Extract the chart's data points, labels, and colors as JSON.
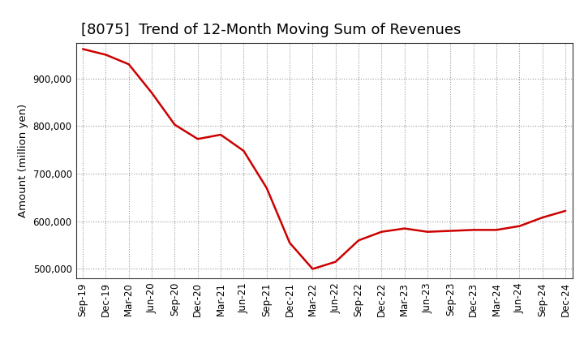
{
  "title": "[8075]  Trend of 12-Month Moving Sum of Revenues",
  "ylabel": "Amount (million yen)",
  "line_color": "#cc0000",
  "background_color": "#ffffff",
  "grid_color": "#999999",
  "x_labels": [
    "Sep-19",
    "Dec-19",
    "Mar-20",
    "Jun-20",
    "Sep-20",
    "Dec-20",
    "Mar-21",
    "Jun-21",
    "Sep-21",
    "Dec-21",
    "Mar-22",
    "Jun-22",
    "Sep-22",
    "Dec-22",
    "Mar-23",
    "Jun-23",
    "Sep-23",
    "Dec-23",
    "Mar-24",
    "Jun-24",
    "Sep-24",
    "Dec-24"
  ],
  "y_values": [
    962000,
    950000,
    930000,
    870000,
    803000,
    773000,
    782000,
    748000,
    670000,
    555000,
    500000,
    515000,
    560000,
    578000,
    585000,
    578000,
    580000,
    582000,
    582000,
    590000,
    608000,
    622000
  ],
  "ylim": [
    480000,
    975000
  ],
  "yticks": [
    500000,
    600000,
    700000,
    800000,
    900000
  ],
  "title_fontsize": 13,
  "label_fontsize": 9.5,
  "tick_fontsize": 8.5
}
